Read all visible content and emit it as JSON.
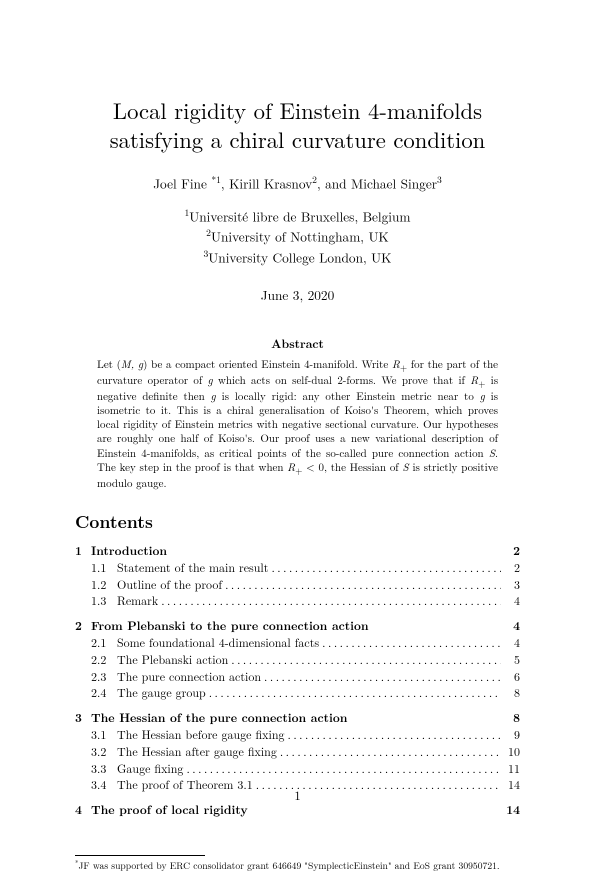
{
  "title": "Local rigidity of Einstein 4-manifolds satisfying a chiral curvature condition",
  "authors_html": "Joel Fine <span class='sup-star'>*1</span>, Kirill Krasnov<sup>2</sup>, and Michael Singer<sup>3</sup>",
  "affiliations": [
    "<sup>1</sup>Université libre de Bruxelles, Belgium",
    "<sup>2</sup>University of Nottingham, UK",
    "<sup>3</sup>University College London, UK"
  ],
  "date": "June 3, 2020",
  "abstract_heading": "Abstract",
  "abstract_body": "Let (<i>M, g</i>) be a compact oriented Einstein 4-manifold. Write <i>R</i><sub>+</sub> for the part of the curvature operator of <i>g</i> which acts on self-dual 2-forms. We prove that if <i>R</i><sub>+</sub> is negative definite then <i>g</i> is locally rigid: any other Einstein metric near to <i>g</i> is isometric to it. This is a chiral generalisation of Koiso's Theorem, which proves local rigidity of Einstein metrics with negative sectional curvature. Our hypotheses are roughly one half of Koiso's. Our proof uses a new variational description of Einstein 4-manifolds, as critical points of the so-called pure connection action <i>S</i>. The key step in the proof is that when <i>R</i><sub>+</sub> &lt; 0, the Hessian of <i>S</i> is strictly positive modulo gauge.",
  "contents_heading": "Contents",
  "toc": [
    {
      "num": "1",
      "title": "Introduction",
      "page": "2",
      "subs": [
        {
          "num": "1.1",
          "title": "Statement of the main result",
          "page": "2"
        },
        {
          "num": "1.2",
          "title": "Outline of the proof",
          "page": "3"
        },
        {
          "num": "1.3",
          "title": "Remark",
          "page": "4"
        }
      ]
    },
    {
      "num": "2",
      "title": "From Plebanski to the pure connection action",
      "page": "4",
      "subs": [
        {
          "num": "2.1",
          "title": "Some foundational 4-dimensional facts",
          "page": "4"
        },
        {
          "num": "2.2",
          "title": "The Plebanski action",
          "page": "5"
        },
        {
          "num": "2.3",
          "title": "The pure connection action",
          "page": "6"
        },
        {
          "num": "2.4",
          "title": "The gauge group",
          "page": "8"
        }
      ]
    },
    {
      "num": "3",
      "title": "The Hessian of the pure connection action",
      "page": "8",
      "subs": [
        {
          "num": "3.1",
          "title": "The Hessian before gauge fixing",
          "page": "9"
        },
        {
          "num": "3.2",
          "title": "The Hessian after gauge fixing",
          "page": "10"
        },
        {
          "num": "3.3",
          "title": "Gauge fixing",
          "page": "11"
        },
        {
          "num": "3.4",
          "title": "The proof of Theorem 3.1",
          "page": "14"
        }
      ]
    },
    {
      "num": "4",
      "title": "The proof of local rigidity",
      "page": "14",
      "subs": []
    }
  ],
  "footnote": "<sup>*</sup>JF was supported by ERC consolidator grant 646649 \"SymplecticEinstein\" and EoS grant 30950721.",
  "page_number": "1"
}
